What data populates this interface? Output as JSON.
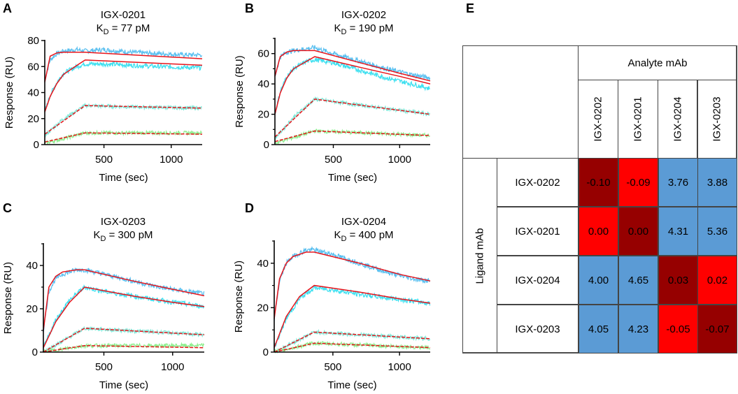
{
  "panel_letters": [
    "A",
    "B",
    "C",
    "D",
    "E"
  ],
  "chart_data": [
    {
      "type": "line",
      "title": "IGX-0201",
      "kd_symbol": "K",
      "kd_subscript": "D",
      "kd_value": "= 77 pM",
      "xlabel": "Time (sec)",
      "ylabel": "Response (RU)",
      "xlim": [
        60,
        1230
      ],
      "ylim": [
        0,
        80
      ],
      "xticks": [
        500,
        1000
      ],
      "yticks": [
        0,
        20,
        40,
        60,
        80
      ],
      "yminor": [],
      "grid": false,
      "fit_color": "#E8141B",
      "series": [
        {
          "color": "#5BC0F0",
          "observed": [
            [
              60,
              50
            ],
            [
              100,
              65
            ],
            [
              150,
              70
            ],
            [
              200,
              72
            ],
            [
              300,
              73
            ],
            [
              360,
              72
            ],
            [
              500,
              73
            ],
            [
              700,
              71
            ],
            [
              900,
              70
            ],
            [
              1100,
              69
            ],
            [
              1230,
              69
            ]
          ],
          "fit": [
            [
              60,
              48
            ],
            [
              100,
              68
            ],
            [
              150,
              70.5
            ],
            [
              200,
              71
            ],
            [
              360,
              71
            ],
            [
              1230,
              66
            ]
          ]
        },
        {
          "color": "#40E0F0",
          "observed": [
            [
              60,
              25
            ],
            [
              100,
              38
            ],
            [
              150,
              48
            ],
            [
              200,
              55
            ],
            [
              300,
              60
            ],
            [
              360,
              62
            ],
            [
              500,
              62
            ],
            [
              700,
              61
            ],
            [
              900,
              60
            ],
            [
              1230,
              59
            ]
          ],
          "fit": [
            [
              60,
              25
            ],
            [
              100,
              37
            ],
            [
              150,
              47
            ],
            [
              200,
              54
            ],
            [
              300,
              61
            ],
            [
              360,
              65
            ],
            [
              1230,
              61
            ]
          ]
        },
        {
          "color": "#7FE8D8",
          "observed": [
            [
              60,
              7
            ],
            [
              200,
              20
            ],
            [
              360,
              30
            ],
            [
              700,
              29
            ],
            [
              1230,
              28
            ]
          ],
          "fit": [
            [
              60,
              8
            ],
            [
              360,
              30
            ],
            [
              1230,
              28
            ]
          ]
        },
        {
          "color": "#90EE90",
          "observed": [
            [
              60,
              1
            ],
            [
              360,
              9
            ],
            [
              1230,
              9
            ]
          ],
          "fit": [
            [
              60,
              2
            ],
            [
              360,
              9
            ],
            [
              1230,
              8
            ]
          ]
        }
      ]
    },
    {
      "type": "line",
      "title": "IGX-0202",
      "kd_symbol": "K",
      "kd_subscript": "D",
      "kd_value": "= 190 pM",
      "xlabel": "Time (sec)",
      "ylabel": "Response (RU)",
      "xlim": [
        60,
        1230
      ],
      "ylim": [
        0,
        70
      ],
      "xticks": [
        500,
        1000
      ],
      "yticks": [
        0,
        20,
        40,
        60
      ],
      "yminor": [
        10,
        30,
        50,
        70
      ],
      "grid": false,
      "fit_color": "#E8141B",
      "series": [
        {
          "color": "#5BC0F0",
          "observed": [
            [
              60,
              45
            ],
            [
              100,
              58
            ],
            [
              150,
              61
            ],
            [
              200,
              62
            ],
            [
              360,
              64
            ],
            [
              500,
              60
            ],
            [
              700,
              55
            ],
            [
              900,
              50
            ],
            [
              1100,
              46
            ],
            [
              1230,
              44
            ]
          ],
          "fit": [
            [
              60,
              45
            ],
            [
              100,
              58
            ],
            [
              150,
              61
            ],
            [
              200,
              62
            ],
            [
              360,
              62
            ],
            [
              700,
              54
            ],
            [
              1000,
              47
            ],
            [
              1230,
              42
            ]
          ]
        },
        {
          "color": "#40E0F0",
          "observed": [
            [
              60,
              20
            ],
            [
              100,
              35
            ],
            [
              150,
              45
            ],
            [
              200,
              50
            ],
            [
              300,
              55
            ],
            [
              360,
              56
            ],
            [
              500,
              54
            ],
            [
              700,
              49
            ],
            [
              900,
              44
            ],
            [
              1230,
              37
            ]
          ],
          "fit": [
            [
              60,
              20
            ],
            [
              100,
              34
            ],
            [
              150,
              44
            ],
            [
              200,
              50
            ],
            [
              300,
              55
            ],
            [
              360,
              58
            ],
            [
              700,
              51
            ],
            [
              1000,
              45
            ],
            [
              1230,
              40
            ]
          ]
        },
        {
          "color": "#7FE8D8",
          "observed": [
            [
              60,
              4
            ],
            [
              200,
              18
            ],
            [
              360,
              30
            ],
            [
              700,
              26
            ],
            [
              1230,
              20
            ]
          ],
          "fit": [
            [
              60,
              5
            ],
            [
              360,
              30
            ],
            [
              700,
              26
            ],
            [
              1230,
              20
            ]
          ]
        },
        {
          "color": "#90EE90",
          "observed": [
            [
              60,
              1
            ],
            [
              360,
              9
            ],
            [
              1230,
              6
            ]
          ],
          "fit": [
            [
              60,
              2
            ],
            [
              360,
              9
            ],
            [
              1230,
              6
            ]
          ]
        }
      ]
    },
    {
      "type": "line",
      "title": "IGX-0203",
      "kd_symbol": "K",
      "kd_subscript": "D",
      "kd_value": "= 300 pM",
      "xlabel": "Time (sec)",
      "ylabel": "Response (RU)",
      "xlim": [
        60,
        1230
      ],
      "ylim": [
        0,
        50
      ],
      "xticks": [
        500,
        1000
      ],
      "yticks": [
        0,
        20,
        40
      ],
      "yminor": [
        10,
        30,
        50
      ],
      "grid": false,
      "fit_color": "#E8141B",
      "series": [
        {
          "color": "#5BC0F0",
          "observed": [
            [
              60,
              10
            ],
            [
              100,
              28
            ],
            [
              150,
              34
            ],
            [
              200,
              36
            ],
            [
              300,
              38
            ],
            [
              360,
              38
            ],
            [
              500,
              36
            ],
            [
              700,
              33
            ],
            [
              900,
              30
            ],
            [
              1100,
              28
            ],
            [
              1230,
              27
            ]
          ],
          "fit": [
            [
              60,
              10
            ],
            [
              100,
              30
            ],
            [
              150,
              35
            ],
            [
              200,
              37
            ],
            [
              300,
              38
            ],
            [
              360,
              38
            ],
            [
              700,
              33
            ],
            [
              1000,
              29
            ],
            [
              1230,
              26
            ]
          ]
        },
        {
          "color": "#40E0F0",
          "observed": [
            [
              60,
              2
            ],
            [
              150,
              15
            ],
            [
              250,
              24
            ],
            [
              360,
              30
            ],
            [
              500,
              28
            ],
            [
              700,
              26
            ],
            [
              900,
              24
            ],
            [
              1230,
              21
            ]
          ],
          "fit": [
            [
              60,
              2
            ],
            [
              150,
              14
            ],
            [
              250,
              23
            ],
            [
              360,
              30
            ],
            [
              700,
              26
            ],
            [
              1000,
              23
            ],
            [
              1230,
              21
            ]
          ]
        },
        {
          "color": "#7FE8D8",
          "observed": [
            [
              60,
              0
            ],
            [
              360,
              11
            ],
            [
              1230,
              8
            ]
          ],
          "fit": [
            [
              60,
              0
            ],
            [
              360,
              11
            ],
            [
              1230,
              8
            ]
          ]
        },
        {
          "color": "#90EE90",
          "observed": [
            [
              60,
              0
            ],
            [
              360,
              3
            ],
            [
              1230,
              3
            ]
          ],
          "fit": [
            [
              60,
              0
            ],
            [
              360,
              3
            ],
            [
              1230,
              2
            ]
          ]
        }
      ]
    },
    {
      "type": "line",
      "title": "IGX-0204",
      "kd_symbol": "K",
      "kd_subscript": "D",
      "kd_value": "= 400 pM",
      "xlabel": "Time (sec)",
      "ylabel": "Response (RU)",
      "xlim": [
        60,
        1230
      ],
      "ylim": [
        0,
        50
      ],
      "xticks": [
        500,
        1000
      ],
      "yticks": [
        0,
        20,
        40
      ],
      "yminor": [
        10,
        30,
        50
      ],
      "grid": false,
      "fit_color": "#E8141B",
      "series": [
        {
          "color": "#5BC0F0",
          "observed": [
            [
              60,
              15
            ],
            [
              100,
              32
            ],
            [
              150,
              40
            ],
            [
              200,
              43
            ],
            [
              300,
              46
            ],
            [
              360,
              46
            ],
            [
              500,
              44
            ],
            [
              700,
              40
            ],
            [
              900,
              36
            ],
            [
              1100,
              33
            ],
            [
              1230,
              32
            ]
          ],
          "fit": [
            [
              60,
              15
            ],
            [
              100,
              33
            ],
            [
              150,
              40
            ],
            [
              200,
              43
            ],
            [
              300,
              45
            ],
            [
              360,
              45
            ],
            [
              700,
              40
            ],
            [
              1000,
              35
            ],
            [
              1230,
              32
            ]
          ]
        },
        {
          "color": "#40E0F0",
          "observed": [
            [
              60,
              2
            ],
            [
              150,
              15
            ],
            [
              250,
              24
            ],
            [
              360,
              29
            ],
            [
              500,
              28
            ],
            [
              700,
              26
            ],
            [
              1230,
              22
            ]
          ],
          "fit": [
            [
              60,
              2
            ],
            [
              150,
              16
            ],
            [
              250,
              25
            ],
            [
              360,
              30
            ],
            [
              700,
              27
            ],
            [
              1000,
              24
            ],
            [
              1230,
              22
            ]
          ]
        },
        {
          "color": "#7FE8D8",
          "observed": [
            [
              60,
              0
            ],
            [
              360,
              9
            ],
            [
              1230,
              6
            ]
          ],
          "fit": [
            [
              60,
              0
            ],
            [
              360,
              9
            ],
            [
              1230,
              6
            ]
          ]
        },
        {
          "color": "#90EE90",
          "observed": [
            [
              60,
              0
            ],
            [
              360,
              4
            ],
            [
              1230,
              2
            ]
          ],
          "fit": [
            [
              60,
              0
            ],
            [
              360,
              4
            ],
            [
              1230,
              2
            ]
          ]
        }
      ]
    },
    {
      "type": "table",
      "column_group_label": "Analyte mAb",
      "row_group_label": "Ligand mAb",
      "columns": [
        "IGX-0202",
        "IGX-0201",
        "IGX-0204",
        "IGX-0203"
      ],
      "rows": [
        {
          "label": "IGX-0202",
          "values": [
            "-0.10",
            "-0.09",
            "3.76",
            "3.88"
          ],
          "colors": [
            "#960000",
            "#FF0000",
            "#5B9BD5",
            "#5B9BD5"
          ]
        },
        {
          "label": "IGX-0201",
          "values": [
            "0.00",
            "0.00",
            "4.31",
            "5.36"
          ],
          "colors": [
            "#FF0000",
            "#960000",
            "#5B9BD5",
            "#5B9BD5"
          ]
        },
        {
          "label": "IGX-0204",
          "values": [
            "4.00",
            "4.65",
            "0.03",
            "0.02"
          ],
          "colors": [
            "#5B9BD5",
            "#5B9BD5",
            "#960000",
            "#FF0000"
          ]
        },
        {
          "label": "IGX-0203",
          "values": [
            "4.05",
            "4.23",
            "-0.05",
            "-0.07"
          ],
          "colors": [
            "#5B9BD5",
            "#5B9BD5",
            "#FF0000",
            "#960000"
          ]
        }
      ]
    }
  ]
}
